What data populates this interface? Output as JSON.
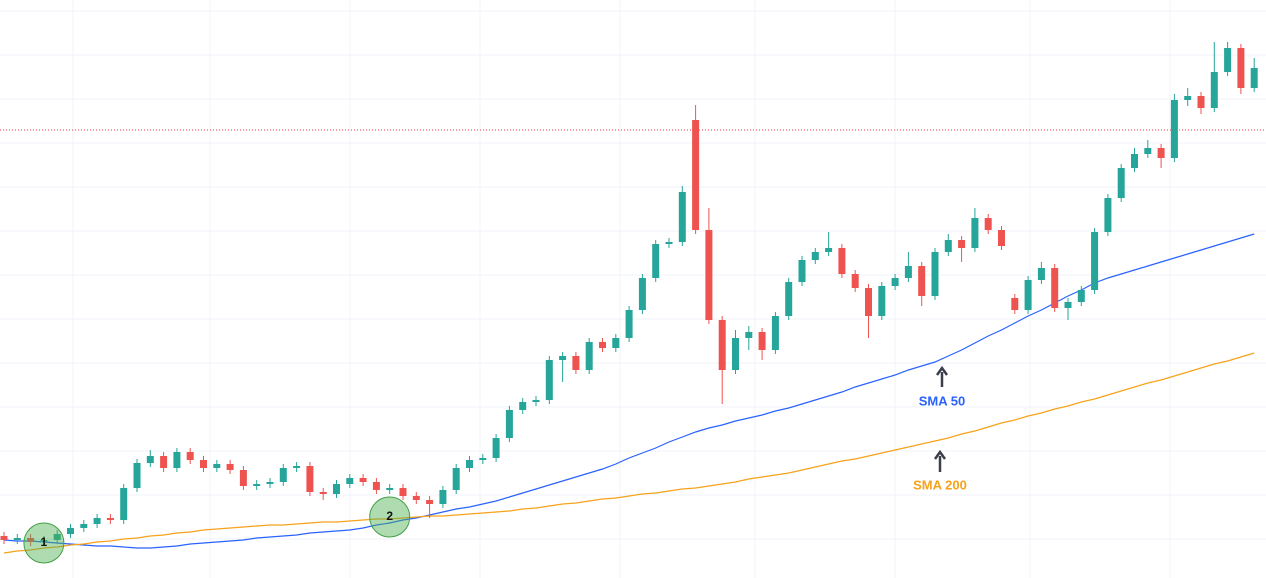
{
  "chart_data": {
    "type": "candlestick",
    "up_color": "#26a69a",
    "down_color": "#ef5350",
    "ylim": [
      0,
      578
    ],
    "yticks": [
      39,
      83,
      127,
      171,
      215,
      259,
      303,
      347,
      391,
      435,
      479,
      523,
      567
    ],
    "grid": true,
    "price_line": {
      "value": 448,
      "color": "#f23645"
    },
    "open": [
      42,
      38,
      40,
      36,
      38,
      44,
      50,
      54,
      60,
      58,
      90,
      115,
      122,
      110,
      126,
      118,
      110,
      114,
      108,
      92,
      94,
      96,
      110,
      112,
      86,
      84,
      94,
      100,
      96,
      88,
      90,
      82,
      78,
      74,
      88,
      110,
      118,
      120,
      140,
      168,
      176,
      178,
      218,
      222,
      208,
      236,
      230,
      240,
      268,
      300,
      334,
      336,
      458,
      348,
      258,
      208,
      240,
      246,
      228,
      262,
      296,
      318,
      326,
      330,
      304,
      290,
      262,
      292,
      300,
      312,
      282,
      326,
      338,
      330,
      360,
      348,
      280,
      268,
      298,
      310,
      270,
      276,
      288,
      346,
      380,
      410,
      424,
      430,
      420,
      478,
      482,
      470,
      506,
      530,
      490
    ],
    "high": [
      46,
      44,
      44,
      42,
      48,
      54,
      58,
      64,
      64,
      94,
      119,
      128,
      126,
      130,
      130,
      122,
      118,
      118,
      112,
      98,
      100,
      114,
      116,
      116,
      90,
      98,
      104,
      104,
      100,
      94,
      94,
      86,
      82,
      92,
      114,
      122,
      124,
      144,
      172,
      180,
      182,
      222,
      226,
      226,
      240,
      240,
      244,
      272,
      304,
      338,
      340,
      392,
      473,
      370,
      262,
      248,
      252,
      250,
      266,
      300,
      322,
      330,
      346,
      334,
      308,
      294,
      296,
      304,
      326,
      316,
      330,
      344,
      342,
      370,
      364,
      352,
      284,
      302,
      316,
      314,
      280,
      292,
      350,
      384,
      414,
      430,
      438,
      434,
      484,
      490,
      486,
      536,
      536,
      534,
      520
    ],
    "low": [
      34,
      34,
      32,
      32,
      34,
      40,
      46,
      50,
      54,
      54,
      86,
      111,
      106,
      106,
      114,
      106,
      106,
      104,
      88,
      88,
      90,
      92,
      106,
      82,
      78,
      80,
      90,
      92,
      84,
      84,
      78,
      74,
      60,
      70,
      84,
      106,
      114,
      116,
      136,
      164,
      172,
      174,
      196,
      204,
      204,
      226,
      226,
      236,
      264,
      296,
      330,
      332,
      344,
      254,
      174,
      204,
      228,
      218,
      224,
      258,
      292,
      314,
      322,
      300,
      286,
      240,
      258,
      288,
      296,
      272,
      278,
      322,
      316,
      326,
      344,
      328,
      264,
      264,
      294,
      266,
      258,
      272,
      284,
      342,
      376,
      406,
      420,
      410,
      416,
      472,
      464,
      466,
      502,
      484,
      486
    ],
    "close": [
      38,
      40,
      36,
      38,
      44,
      50,
      54,
      60,
      58,
      90,
      115,
      122,
      110,
      126,
      118,
      110,
      114,
      108,
      92,
      94,
      96,
      110,
      112,
      86,
      84,
      94,
      100,
      96,
      88,
      90,
      82,
      78,
      74,
      88,
      110,
      118,
      120,
      140,
      168,
      176,
      178,
      218,
      222,
      208,
      236,
      230,
      240,
      268,
      300,
      334,
      336,
      386,
      348,
      258,
      208,
      240,
      246,
      228,
      262,
      296,
      318,
      326,
      330,
      304,
      290,
      262,
      292,
      300,
      312,
      282,
      326,
      338,
      330,
      360,
      348,
      332,
      268,
      298,
      310,
      270,
      276,
      288,
      346,
      380,
      410,
      424,
      430,
      420,
      478,
      482,
      470,
      506,
      530,
      490,
      510
    ],
    "series": [
      {
        "name": "SMA 50",
        "color": "#2962ff",
        "values": [
          38,
          37,
          37,
          36,
          35,
          34,
          33,
          32,
          32,
          31,
          30,
          30,
          31,
          32,
          34,
          35,
          36,
          37,
          38,
          40,
          41,
          42,
          43,
          45,
          46,
          47,
          48,
          50,
          53,
          55,
          58,
          60,
          63,
          66,
          69,
          71,
          74,
          77,
          81,
          85,
          89,
          93,
          97,
          101,
          105,
          109,
          114,
          120,
          125,
          130,
          136,
          141,
          146,
          150,
          153,
          157,
          160,
          163,
          167,
          170,
          174,
          178,
          182,
          186,
          191,
          195,
          199,
          203,
          208,
          212,
          216,
          222,
          228,
          235,
          242,
          248,
          255,
          262,
          268,
          275,
          282,
          288,
          295,
          300,
          304,
          308,
          312,
          316,
          320,
          324,
          328,
          332,
          336,
          340,
          344
        ]
      },
      {
        "name": "SMA 200",
        "color": "#f7a21b",
        "values": [
          25,
          27,
          28,
          30,
          31,
          33,
          34,
          36,
          37,
          39,
          40,
          42,
          43,
          45,
          46,
          48,
          49,
          50,
          51,
          52,
          53,
          53,
          54,
          55,
          56,
          56,
          57,
          58,
          59,
          59,
          60,
          61,
          62,
          62,
          63,
          64,
          65,
          66,
          67,
          69,
          70,
          72,
          74,
          75,
          77,
          79,
          80,
          82,
          84,
          85,
          87,
          89,
          90,
          92,
          94,
          96,
          99,
          101,
          103,
          105,
          108,
          111,
          114,
          117,
          119,
          122,
          125,
          128,
          131,
          134,
          137,
          140,
          144,
          147,
          151,
          155,
          158,
          162,
          165,
          169,
          172,
          176,
          179,
          183,
          187,
          191,
          195,
          198,
          202,
          206,
          210,
          214,
          217,
          221,
          225
        ]
      }
    ],
    "markers": [
      {
        "label": "1",
        "index": 3,
        "value": 35
      },
      {
        "label": "2",
        "index": 29,
        "value": 61
      }
    ]
  }
}
